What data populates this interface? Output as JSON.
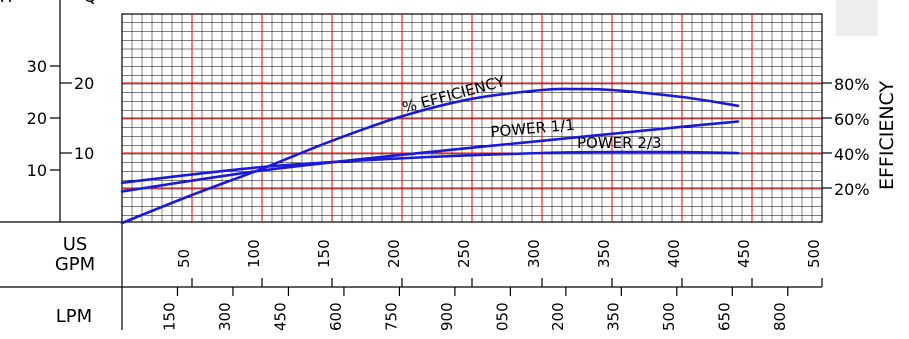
{
  "chart_data": {
    "type": "line",
    "title": "",
    "axes": {
      "h_label": "H",
      "q_label": "Q",
      "h_ticks": [
        "30",
        "20",
        "10"
      ],
      "q_ticks": [
        "20",
        "10"
      ],
      "efficiency_label": "EFFICIENCY",
      "efficiency_ticks": [
        "80%",
        "60%",
        "40%",
        "20%"
      ],
      "gpm_label_line1": "US",
      "gpm_label_line2": "GPM",
      "gpm_ticks": [
        "50",
        "100",
        "150",
        "200",
        "250",
        "300",
        "350",
        "400",
        "450",
        "500"
      ],
      "lpm_label": "LPM",
      "lpm_ticks": [
        "150",
        "300",
        "450",
        "600",
        "750",
        "900",
        "050",
        "200",
        "350",
        "500",
        "650",
        "800"
      ]
    },
    "x_unit": "US GPM",
    "xlim": [
      0,
      500
    ],
    "efficiency_ylim": [
      0,
      100
    ],
    "series": [
      {
        "name": "% EFFICIENCY",
        "axis": "efficiency",
        "x": [
          0,
          50,
          100,
          150,
          200,
          250,
          300,
          325,
          350,
          400,
          440
        ],
        "y": [
          0,
          16,
          31,
          47,
          61,
          71,
          76,
          76.5,
          76,
          72,
          67
        ]
      },
      {
        "name": "POWER 1/1",
        "axis": "efficiency",
        "x": [
          0,
          100,
          200,
          300,
          400,
          440
        ],
        "y": [
          18,
          30,
          39,
          47,
          55,
          58
        ]
      },
      {
        "name": "POWER 2/3",
        "axis": "efficiency",
        "x": [
          0,
          100,
          200,
          300,
          350,
          400,
          440
        ],
        "y": [
          23,
          32,
          37,
          40,
          40.5,
          40.5,
          40
        ]
      }
    ],
    "grid": true,
    "curve_color": "#1a1ad8",
    "major_grid_color": "#e00000",
    "minor_grid_color": "#000000"
  }
}
